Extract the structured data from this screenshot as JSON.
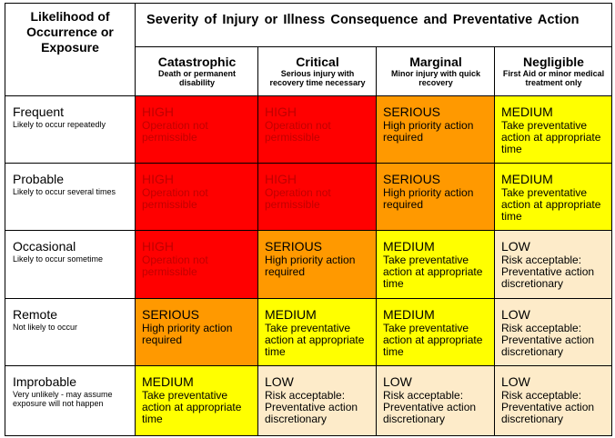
{
  "corner_label": "Likelihood of Occurrence or Exposure",
  "severity_title": "Severity of Injury or Illness Consequence and Preventative Action",
  "severity_levels": [
    {
      "name": "Catastrophic",
      "description": "Death or permanent disability"
    },
    {
      "name": "Critical",
      "description": "Serious injury with recovery time necessary"
    },
    {
      "name": "Marginal",
      "description": "Minor injury with quick recovery"
    },
    {
      "name": "Negligible",
      "description": "First Aid or minor medical treatment only"
    }
  ],
  "risk_levels": {
    "high": {
      "label": "HIGH",
      "action": "Operation not permissible",
      "color": "#ff0000"
    },
    "serious": {
      "label": "SERIOUS",
      "action": "High priority action required",
      "color": "#ff9900"
    },
    "medium": {
      "label": "MEDIUM",
      "action": "Take preventative action at appropriate time",
      "color": "#ffff00"
    },
    "low": {
      "label": "LOW",
      "action": "Risk acceptable: Preventative action discretionary",
      "color": "#fdebc9"
    }
  },
  "rows": [
    {
      "name": "Frequent",
      "description": "Likely to occur repeatedly",
      "cells": [
        "high",
        "high",
        "serious",
        "medium"
      ]
    },
    {
      "name": "Probable",
      "description": "Likely to occur several times",
      "cells": [
        "high",
        "high",
        "serious",
        "medium"
      ]
    },
    {
      "name": "Occasional",
      "description": "Likely to occur sometime",
      "cells": [
        "high",
        "serious",
        "medium",
        "low"
      ]
    },
    {
      "name": "Remote",
      "description": "Not likely to occur",
      "cells": [
        "serious",
        "medium",
        "medium",
        "low"
      ]
    },
    {
      "name": "Improbable",
      "description": "Very unlikely - may assume exposure will not happen",
      "cells": [
        "medium",
        "low",
        "low",
        "low"
      ]
    }
  ]
}
